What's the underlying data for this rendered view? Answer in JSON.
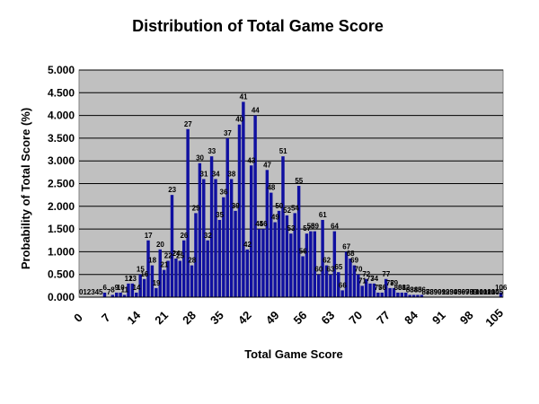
{
  "chart_data": {
    "type": "bar",
    "title": "Distribution of Total Game Score",
    "xlabel": "Total Game Score",
    "ylabel": "Probability of Total Score (%)",
    "ylim": [
      0,
      5
    ],
    "y_ticks": [
      "0.000",
      "0.500",
      "1.000",
      "1.500",
      "2.000",
      "2.500",
      "3.000",
      "3.500",
      "4.000",
      "4.500",
      "5.000"
    ],
    "x_ticks": [
      0,
      7,
      14,
      21,
      28,
      35,
      42,
      49,
      56,
      63,
      70,
      77,
      84,
      91,
      98,
      105
    ],
    "grid": true,
    "legend": "none",
    "bar_color": "#1010a0",
    "plot_background": "#c0c0c0",
    "categories": [
      0,
      1,
      2,
      3,
      4,
      5,
      6,
      7,
      8,
      9,
      10,
      11,
      12,
      13,
      14,
      15,
      16,
      17,
      18,
      19,
      20,
      21,
      22,
      23,
      24,
      25,
      26,
      27,
      28,
      29,
      30,
      31,
      32,
      33,
      34,
      35,
      36,
      37,
      38,
      39,
      40,
      41,
      42,
      43,
      44,
      45,
      46,
      47,
      48,
      49,
      50,
      51,
      52,
      53,
      54,
      55,
      56,
      57,
      58,
      59,
      60,
      61,
      62,
      63,
      64,
      65,
      66,
      67,
      68,
      69,
      70,
      71,
      72,
      73,
      74,
      75,
      76,
      77,
      78,
      79,
      80,
      81,
      82,
      83,
      84,
      85,
      86,
      87,
      88,
      89,
      90,
      91,
      92,
      93,
      94,
      95,
      96,
      97,
      98,
      99,
      100,
      101,
      102,
      103,
      104,
      105,
      106
    ],
    "values": [
      0,
      0,
      0,
      0,
      0,
      0,
      0.1,
      0,
      0.05,
      0.1,
      0.1,
      0.05,
      0.3,
      0.3,
      0.1,
      0.5,
      0.4,
      1.25,
      0.7,
      0.2,
      1.05,
      0.6,
      0.8,
      2.25,
      0.85,
      0.8,
      1.25,
      3.7,
      0.7,
      1.85,
      2.95,
      2.6,
      1.25,
      3.1,
      2.6,
      1.7,
      2.2,
      3.5,
      2.6,
      1.9,
      3.8,
      4.3,
      1.05,
      2.9,
      4.0,
      1.5,
      1.5,
      2.8,
      2.3,
      1.65,
      1.9,
      3.1,
      1.8,
      1.4,
      1.85,
      2.45,
      0.9,
      1.4,
      1.45,
      1.45,
      0.5,
      1.7,
      0.7,
      0.5,
      1.45,
      0.55,
      0.15,
      1.0,
      0.85,
      0.7,
      0.5,
      0.25,
      0.4,
      0.3,
      0.3,
      0.1,
      0.1,
      0.4,
      0.2,
      0.2,
      0.1,
      0.1,
      0.1,
      0.05,
      0.05,
      0.05,
      0.05,
      0,
      0,
      0,
      0,
      0,
      0,
      0,
      0,
      0,
      0,
      0,
      0,
      0,
      0,
      0,
      0,
      0,
      0,
      0,
      0.1
    ],
    "data_labels": [
      "0",
      "1",
      "2",
      "3",
      "4",
      "5",
      "6",
      "7",
      "8",
      "9",
      "10",
      "11",
      "12",
      "13",
      "14",
      "15",
      "16",
      "17",
      "18",
      "19",
      "20",
      "21",
      "22",
      "23",
      "24",
      "25",
      "26",
      "27",
      "28",
      "29",
      "30",
      "31",
      "32",
      "33",
      "34",
      "35",
      "36",
      "37",
      "38",
      "39",
      "40",
      "41",
      "42",
      "43",
      "44",
      "45",
      "46",
      "47",
      "48",
      "49",
      "50",
      "51",
      "52",
      "53",
      "54",
      "55",
      "56",
      "57",
      "58",
      "59",
      "60",
      "61",
      "62",
      "63",
      "64",
      "65",
      "66",
      "67",
      "68",
      "69",
      "70",
      "71",
      "72",
      "73",
      "74",
      "75",
      "76",
      "77",
      "78",
      "79",
      "80",
      "81",
      "82",
      "83",
      "84",
      "85",
      "86",
      "87",
      "88",
      "89",
      "90",
      "91",
      "92",
      "93",
      "94",
      "95",
      "96",
      "97",
      "98",
      "99",
      "100",
      "101",
      "102",
      "103",
      "104",
      "105",
      "106"
    ]
  }
}
